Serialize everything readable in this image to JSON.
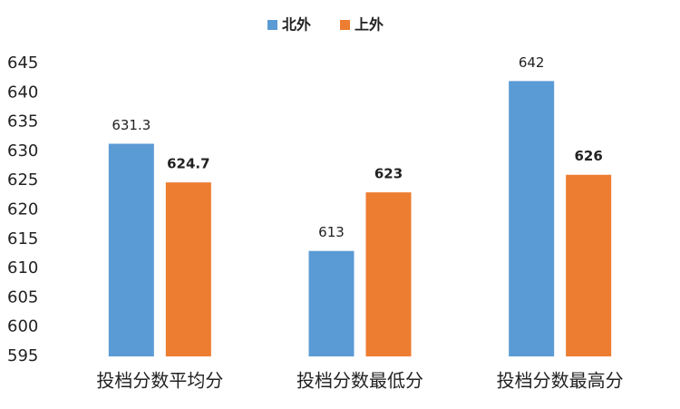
{
  "chart_data": {
    "type": "bar",
    "categories": [
      "投档分数平均分",
      "投档分数最低分",
      "投档分数最高分"
    ],
    "series": [
      {
        "name": "北外",
        "color": "#5b9bd5",
        "values": [
          631.3,
          613,
          642
        ]
      },
      {
        "name": "上外",
        "color": "#ed7d31",
        "values": [
          624.7,
          623,
          626
        ]
      }
    ],
    "ylim": [
      595,
      645
    ],
    "yticks": [
      595,
      600,
      605,
      610,
      615,
      620,
      625,
      630,
      635,
      640,
      645
    ],
    "grid": false,
    "legend": "top"
  }
}
